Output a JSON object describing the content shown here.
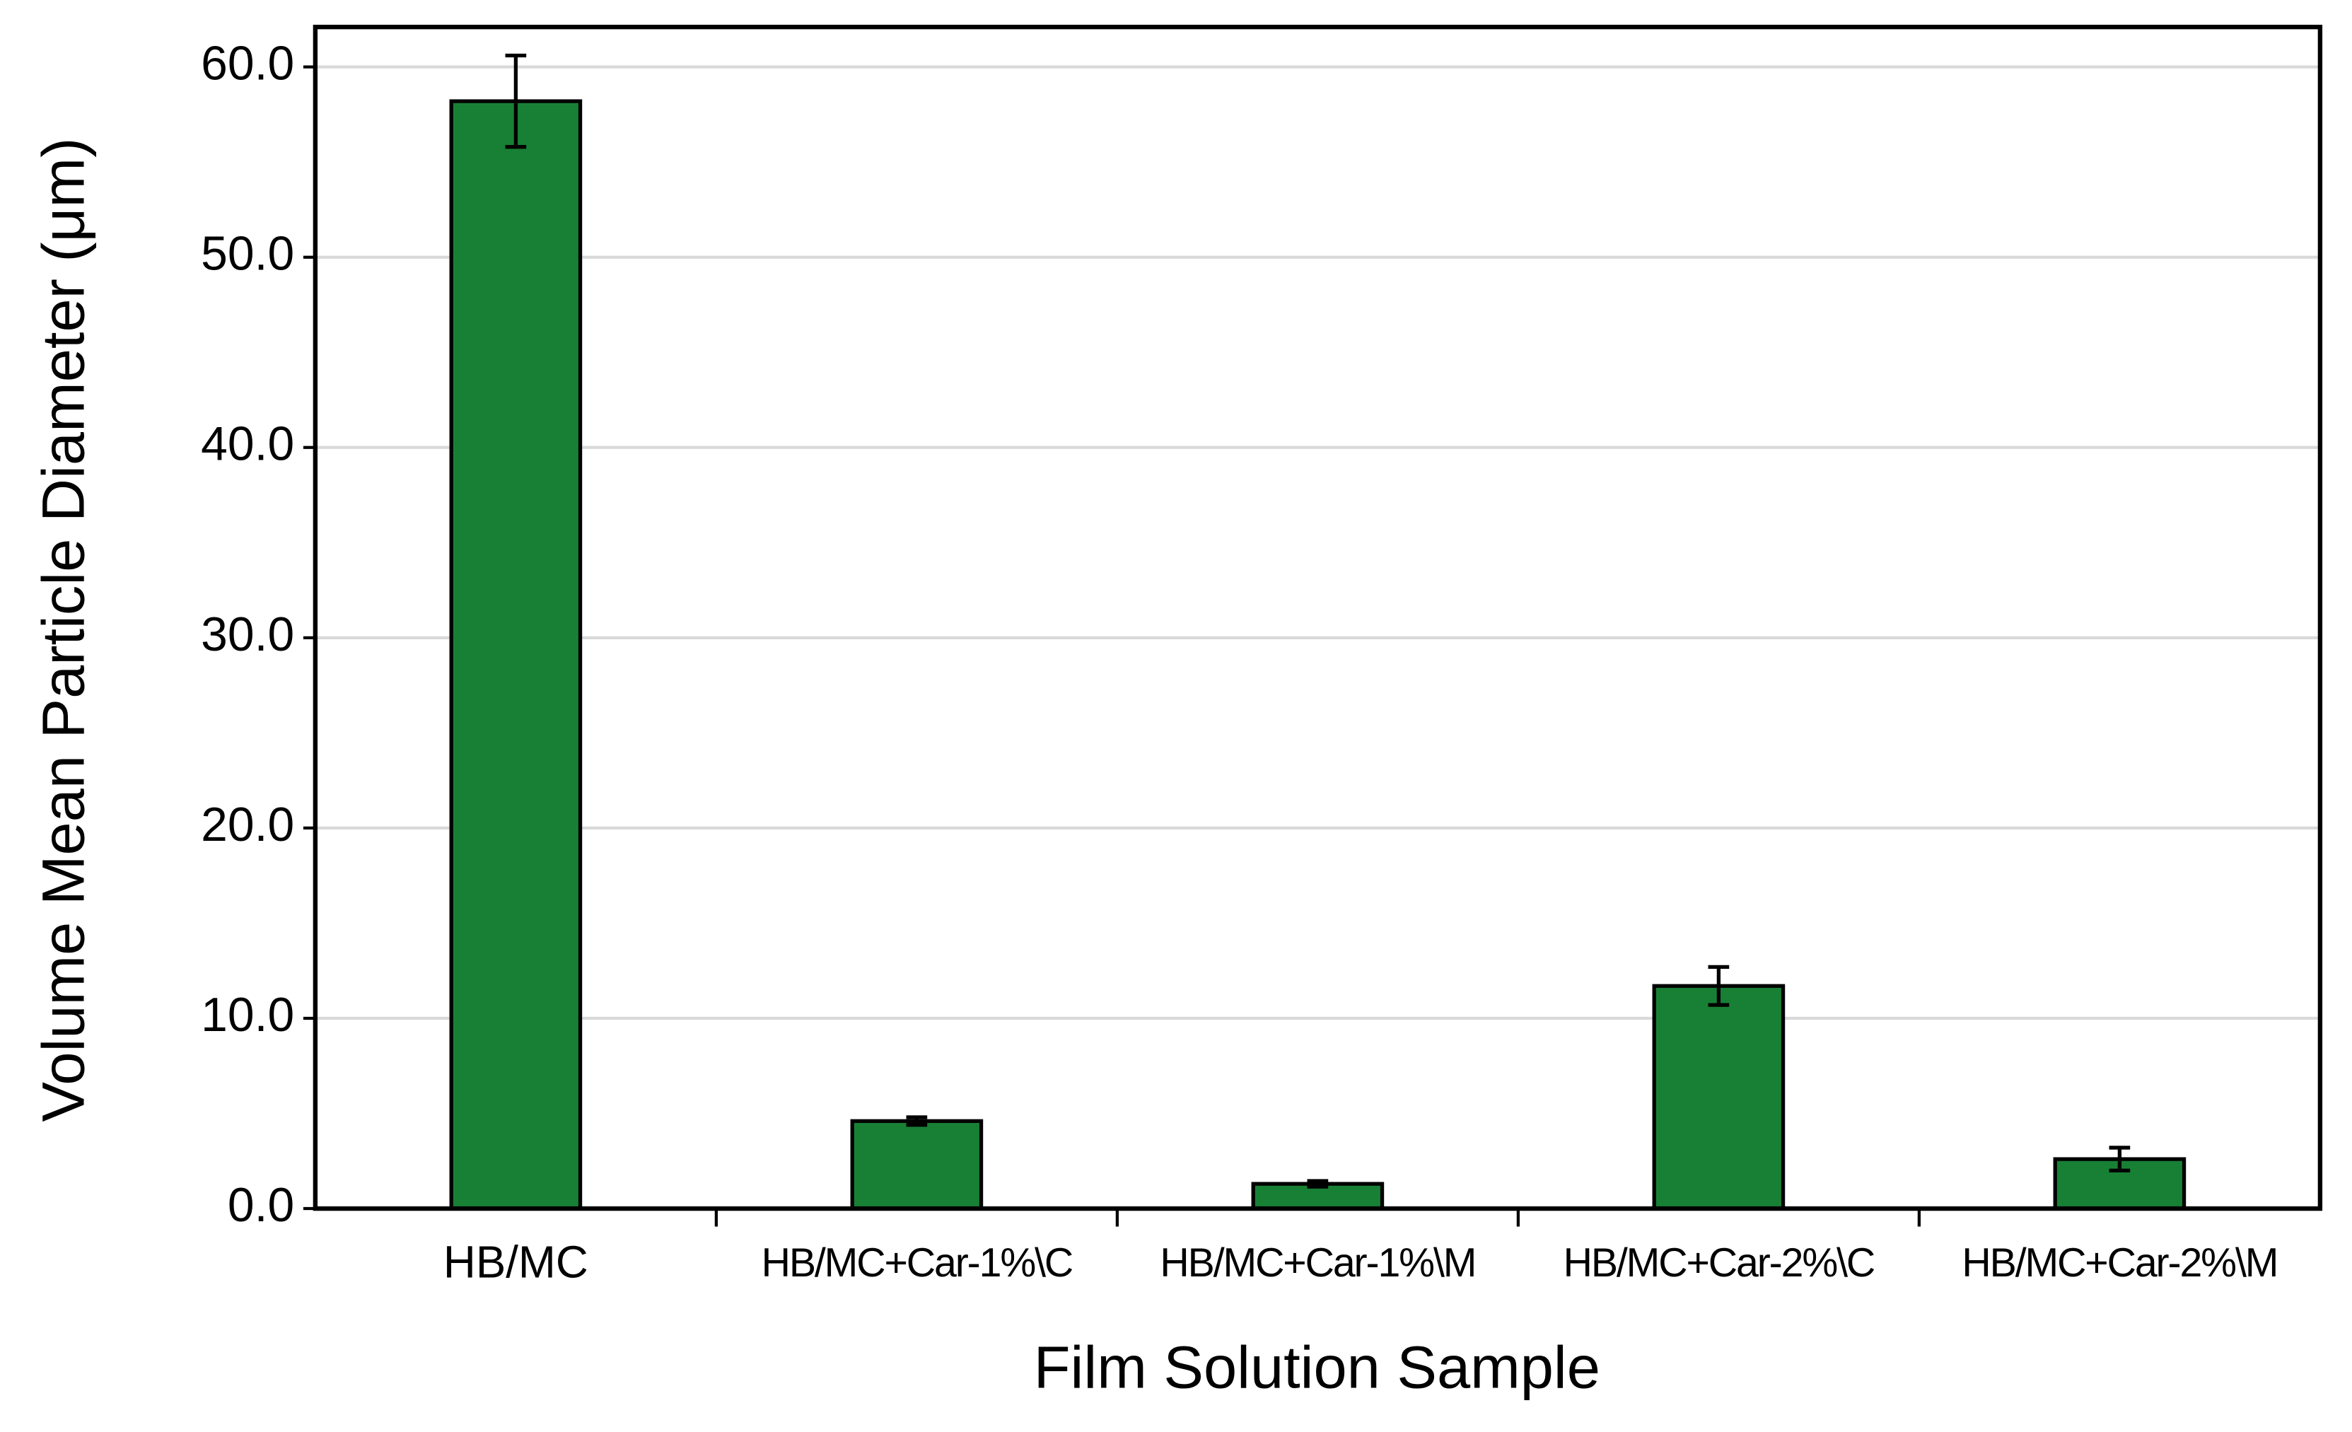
{
  "chart_data": {
    "type": "bar",
    "x_label": "Film Solution Sample",
    "y_label": "Volume Mean Particle Diameter (μm)",
    "categories": [
      "HB/MC",
      "HB/MC+Car-1%\\C",
      "HB/MC+Car-1%\\M",
      "HB/MC+Car-2%\\C",
      "HB/MC+Car-2%\\M"
    ],
    "values": [
      58.2,
      4.6,
      1.3,
      11.7,
      2.6
    ],
    "errors": [
      2.4,
      0.2,
      0.15,
      1.0,
      0.6
    ],
    "color": "#188035",
    "ylim": [
      0,
      62.1
    ],
    "yticks": [
      {
        "value": 0,
        "label": "0.0"
      },
      {
        "value": 10,
        "label": "10.0"
      },
      {
        "value": 20,
        "label": "20.0"
      },
      {
        "value": 30,
        "label": "30.0"
      },
      {
        "value": 40,
        "label": "40.0"
      },
      {
        "value": 50,
        "label": "50.0"
      },
      {
        "value": 60,
        "label": "60.0"
      }
    ],
    "grid": true
  }
}
